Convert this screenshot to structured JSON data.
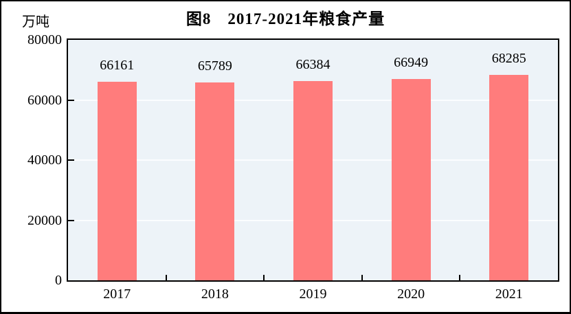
{
  "chart_data": {
    "type": "bar",
    "title": "图8　2017-2021年粮食产量",
    "unit_label": "万吨",
    "categories": [
      "2017",
      "2018",
      "2019",
      "2020",
      "2021"
    ],
    "values": [
      66161,
      65789,
      66384,
      66949,
      68285
    ],
    "xlabel": "",
    "ylabel": "万吨",
    "ylim": [
      0,
      80000
    ],
    "yticks": [
      0,
      20000,
      40000,
      60000,
      80000
    ],
    "grid": "horizontal gridlines at major y ticks, drawn behind bars",
    "legend_position": "none",
    "colors": {
      "bar": "#FF7C7C",
      "plot_background": "#EDF3F8",
      "gridline": "#FBFDFF",
      "axis": "#000000",
      "page_background": "#FFFFFF",
      "text": "#000000"
    }
  }
}
